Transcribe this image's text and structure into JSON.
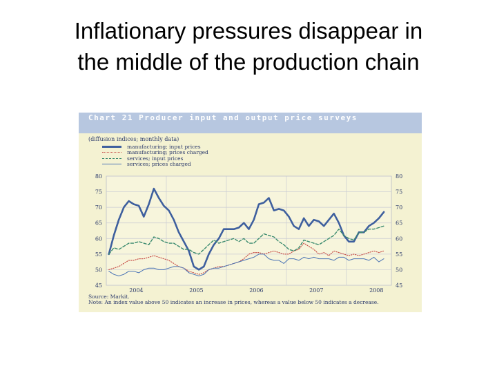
{
  "slide": {
    "title_lines": [
      "Inflationary pressures disappear in",
      "the middle of the production chain"
    ]
  },
  "chart_data": {
    "type": "line",
    "heading": "Chart 21 Producer input and output price surveys",
    "subtitle": "(diffusion indices; monthly data)",
    "source": "Source: Markit.",
    "note": "Note: An index value above 50 indicates an increase in prices, whereas a value below 50 indicates a decrease.",
    "ylim": [
      45,
      80
    ],
    "yticks": [
      45,
      50,
      55,
      60,
      65,
      70,
      75,
      80
    ],
    "y_tick_labels": [
      "45",
      "50",
      "55",
      "60",
      "65",
      "70",
      "75",
      "80"
    ],
    "x_tick_labels": [
      "2004",
      "2005",
      "2006",
      "2007",
      "2008"
    ],
    "x_label_positions": [
      2004.0,
      2005.0,
      2006.0,
      2007.0,
      2008.0
    ],
    "xlim": [
      2003.5,
      2008.25
    ],
    "x_dividers": [
      2004.5,
      2005.5,
      2006.5,
      2007.5
    ],
    "grid": true,
    "legend_position": "top-left",
    "x": [
      2003.542,
      2003.625,
      2003.708,
      2003.792,
      2003.875,
      2003.958,
      2004.042,
      2004.125,
      2004.208,
      2004.292,
      2004.375,
      2004.458,
      2004.542,
      2004.625,
      2004.708,
      2004.792,
      2004.875,
      2004.958,
      2005.042,
      2005.125,
      2005.208,
      2005.292,
      2005.375,
      2005.458,
      2005.542,
      2005.625,
      2005.708,
      2005.792,
      2005.875,
      2005.958,
      2006.042,
      2006.125,
      2006.208,
      2006.292,
      2006.375,
      2006.458,
      2006.542,
      2006.625,
      2006.708,
      2006.792,
      2006.875,
      2006.958,
      2007.042,
      2007.125,
      2007.208,
      2007.292,
      2007.375,
      2007.458,
      2007.542,
      2007.625,
      2007.708,
      2007.792,
      2007.875,
      2007.958,
      2008.042,
      2008.125
    ],
    "series": [
      {
        "name": "manufacturing; input prices",
        "color": "#3e5f9e",
        "dash": "solid",
        "width": 2.6,
        "values": [
          55,
          61,
          66,
          70,
          72,
          71,
          70.5,
          67,
          71,
          76,
          73,
          70.5,
          69,
          66,
          62,
          59,
          56,
          51,
          50,
          51,
          55,
          58,
          60,
          63,
          63,
          63,
          63.5,
          65,
          63,
          66,
          71,
          71.5,
          73,
          69,
          69.5,
          69,
          67,
          64,
          63,
          66.5,
          64,
          66,
          65.5,
          64,
          66,
          68,
          65,
          61,
          59,
          59,
          62,
          62,
          64,
          65,
          66.5,
          68.5
        ]
      },
      {
        "name": "manufacturing; prices charged",
        "color": "#c8504a",
        "dash": "dot",
        "width": 1.2,
        "values": [
          50,
          50.5,
          51,
          52,
          53,
          53,
          53.5,
          53.5,
          54,
          54.5,
          54,
          53.5,
          53,
          52,
          51,
          50.5,
          49.5,
          49,
          48.5,
          49,
          50,
          50.5,
          51,
          51,
          51.5,
          52,
          52.5,
          53.5,
          55,
          55.5,
          55.5,
          55,
          55.5,
          56,
          55.5,
          55,
          55,
          56,
          56.5,
          58.5,
          57.5,
          56.5,
          55,
          55.5,
          54.5,
          56,
          55.5,
          55,
          54.5,
          55,
          54.5,
          55,
          55.5,
          56,
          55.5,
          56
        ]
      },
      {
        "name": "services; input prices",
        "color": "#3a8a6e",
        "dash": "dash",
        "width": 1.4,
        "values": [
          55,
          57,
          56.5,
          57.5,
          58.5,
          58.5,
          59,
          58.5,
          58,
          60.5,
          60,
          59,
          58.5,
          58.5,
          57.5,
          56.5,
          56.5,
          55.5,
          55,
          56.5,
          58,
          59.5,
          58.5,
          59,
          59.5,
          60,
          59,
          60,
          58.5,
          58.5,
          60,
          61.5,
          61,
          60.5,
          59,
          58,
          56.5,
          56,
          57,
          59.5,
          59,
          58.5,
          58,
          59,
          60,
          61,
          63,
          61,
          60,
          59.5,
          62,
          62,
          63,
          63,
          63.5,
          64
        ]
      },
      {
        "name": "services; prices charged",
        "color": "#4b74b5",
        "dash": "solid",
        "width": 1.0,
        "values": [
          49.5,
          48.5,
          48,
          48.5,
          49.5,
          49.5,
          49,
          50,
          50.5,
          50.5,
          50,
          50,
          50.5,
          51,
          51,
          50.5,
          49,
          48.5,
          48,
          48.5,
          50,
          50.5,
          50.5,
          51,
          51.5,
          52,
          52.5,
          53,
          53.5,
          54,
          55,
          55,
          53.5,
          53,
          53,
          52,
          53.5,
          53.5,
          53,
          54,
          53.5,
          54,
          53.5,
          53.5,
          53.5,
          53,
          54,
          54,
          53,
          53.5,
          53.5,
          53.5,
          53,
          54,
          52.5,
          53.5
        ]
      }
    ]
  }
}
